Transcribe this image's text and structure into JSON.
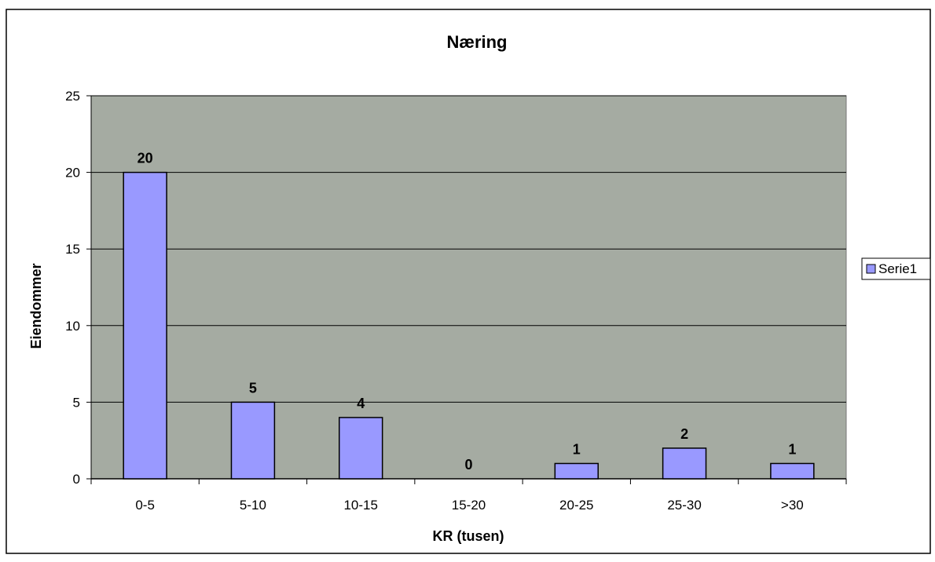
{
  "chart_data": {
    "type": "bar",
    "title": "Næring",
    "xlabel": "KR (tusen)",
    "ylabel": "Eiendommer",
    "categories": [
      "0-5",
      "5-10",
      "10-15",
      "15-20",
      "20-25",
      "25-30",
      ">30"
    ],
    "series": [
      {
        "name": "Serie1",
        "values": [
          20,
          5,
          4,
          0,
          1,
          2,
          1
        ]
      }
    ],
    "ylim": [
      0,
      25
    ],
    "yticks": [
      0,
      5,
      10,
      15,
      20,
      25
    ],
    "data_labels": true,
    "grid": true,
    "legend": "right",
    "colors": {
      "bar": "#9999ff",
      "bar_stroke": "#000000",
      "plot_background": "#a5aba2",
      "gridline": "#000000"
    }
  }
}
